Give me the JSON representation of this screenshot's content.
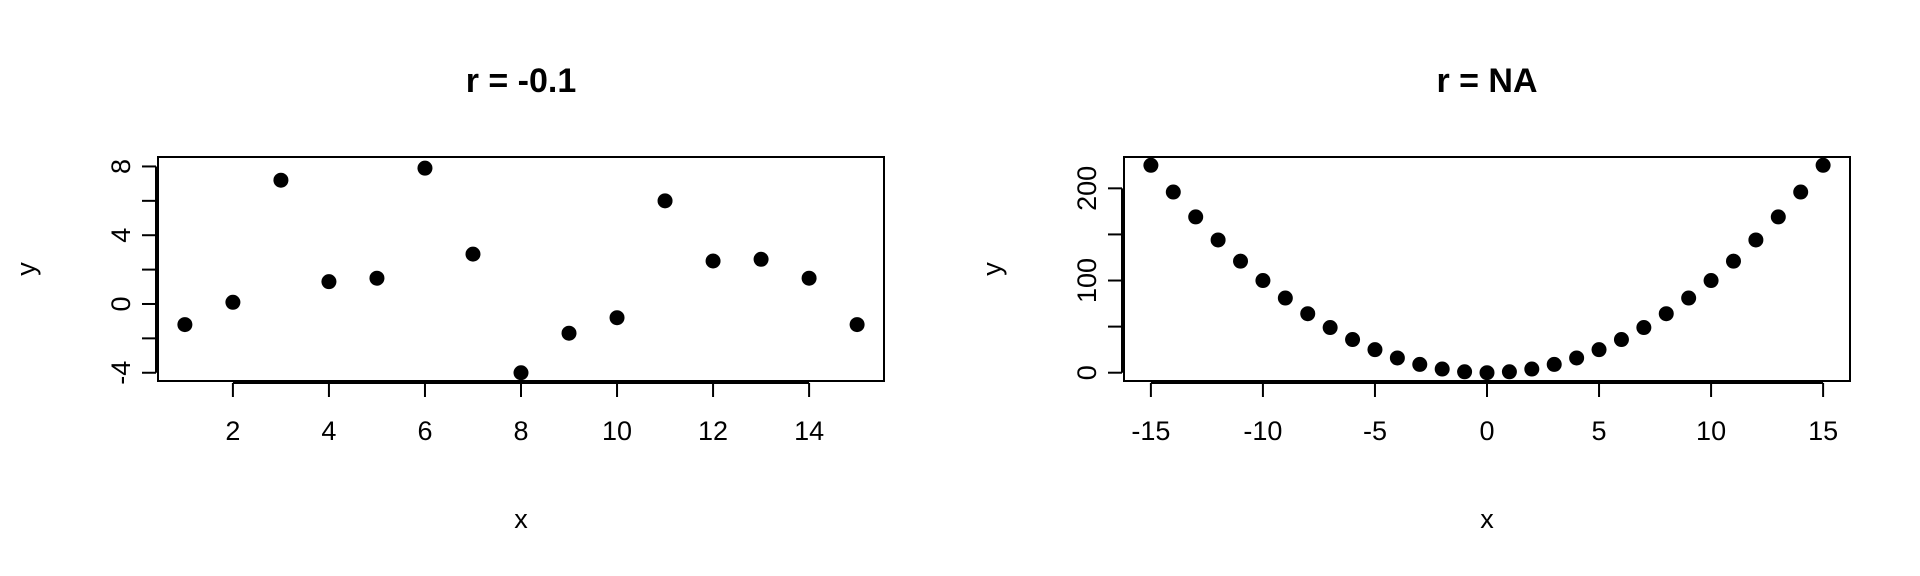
{
  "chart_data": [
    {
      "type": "scatter",
      "title": "r = -0.1",
      "xlabel": "x",
      "ylabel": "y",
      "xlim": [
        0.44,
        15.56
      ],
      "ylim": [
        -4.48,
        8.55
      ],
      "x_ticks": [
        2,
        4,
        6,
        8,
        10,
        12,
        14
      ],
      "y_ticks": [
        -4,
        -2,
        0,
        2,
        4,
        6,
        8
      ],
      "y_tick_labels": [
        -4,
        0,
        4,
        8
      ],
      "x": [
        1,
        2,
        3,
        4,
        5,
        6,
        7,
        8,
        9,
        10,
        11,
        12,
        13,
        14,
        15
      ],
      "y": [
        -1.2,
        0.1,
        7.2,
        1.3,
        1.5,
        7.9,
        2.9,
        -4.0,
        -1.7,
        -0.8,
        6.0,
        2.5,
        2.6,
        1.5,
        -1.2
      ]
    },
    {
      "type": "scatter",
      "title": "r = NA",
      "xlabel": "x",
      "ylabel": "y",
      "xlim": [
        -16.2,
        16.2
      ],
      "ylim": [
        -9,
        234
      ],
      "x_ticks": [
        -15,
        -10,
        -5,
        0,
        5,
        10,
        15
      ],
      "y_ticks": [
        0,
        50,
        100,
        150,
        200
      ],
      "y_tick_labels": [
        0,
        100,
        200
      ],
      "x": [
        -15,
        -14,
        -13,
        -12,
        -11,
        -10,
        -9,
        -8,
        -7,
        -6,
        -5,
        -4,
        -3,
        -2,
        -1,
        0,
        1,
        2,
        3,
        4,
        5,
        6,
        7,
        8,
        9,
        10,
        11,
        12,
        13,
        14,
        15
      ],
      "y": [
        225,
        196,
        169,
        144,
        121,
        100,
        81,
        64,
        49,
        36,
        25,
        16,
        9,
        4,
        1,
        0,
        1,
        4,
        9,
        16,
        25,
        36,
        49,
        64,
        81,
        100,
        121,
        144,
        169,
        196,
        225
      ]
    }
  ]
}
